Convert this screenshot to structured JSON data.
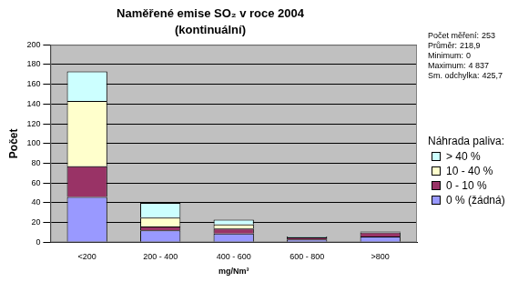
{
  "chart_data": {
    "type": "bar",
    "title": "Naměřené emise SO₂ v roce 2004",
    "subtitle": "(kontinuální)",
    "x_label": "mg/Nm³",
    "y_label": "Počet",
    "categories": [
      "<200",
      "200 - 400",
      "400 - 600",
      "600 - 800",
      ">800"
    ],
    "series": [
      {
        "name": "0 % (žádná)",
        "color": "#9999ff",
        "values": [
          46,
          12,
          9,
          3,
          6
        ]
      },
      {
        "name": "0 - 10 %",
        "color": "#993366",
        "values": [
          31,
          4,
          5,
          2,
          4
        ]
      },
      {
        "name": "10 - 40 %",
        "color": "#ffffcc",
        "values": [
          66,
          9,
          4,
          0,
          0
        ]
      },
      {
        "name": "> 40 %",
        "color": "#ccffff",
        "values": [
          30,
          15,
          5,
          1,
          1
        ]
      }
    ],
    "legend_title": "Náhrada paliva:",
    "legend": "right",
    "stacked": true,
    "grid": true,
    "ylim": [
      0,
      200
    ],
    "yticks": [
      0,
      20,
      40,
      60,
      80,
      100,
      120,
      140,
      160,
      180,
      200
    ],
    "annotations": [
      {
        "text": "Počet měření:",
        "value": 253
      },
      {
        "text": "Průměr:",
        "value": 218.9,
        "label": "218,9"
      },
      {
        "text": "Minimum:",
        "value": 0
      },
      {
        "text": "Maximum:",
        "value": 4837,
        "label": "4 837"
      },
      {
        "text": "Sm. odchylka:",
        "value": 425.7,
        "label": "425,7"
      }
    ]
  }
}
